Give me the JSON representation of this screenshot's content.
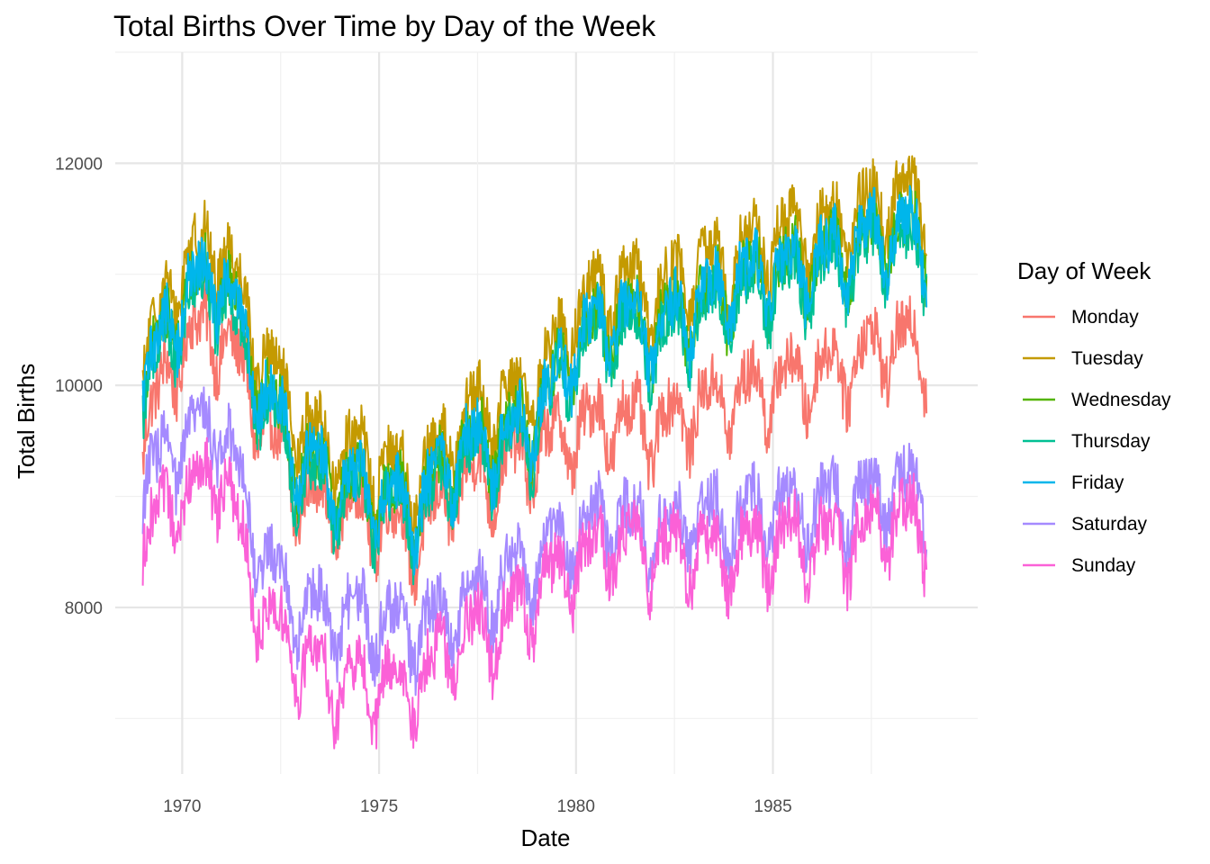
{
  "chart_data": {
    "type": "line",
    "title": "Total Births Over Time by Day of the Week",
    "xlabel": "Date",
    "ylabel": "Total Births",
    "xlim": [
      1968.3,
      1990.2
    ],
    "ylim": [
      6500,
      13000
    ],
    "x_ticks": [
      1970,
      1975,
      1980,
      1985
    ],
    "x_tick_labels": [
      "1970",
      "1975",
      "1980",
      "1985"
    ],
    "y_ticks": [
      8000,
      10000,
      12000
    ],
    "y_tick_labels": [
      "8000",
      "10000",
      "12000"
    ],
    "grid": true,
    "legend_title": "Day of Week",
    "legend_position": "right",
    "series": [
      {
        "name": "Monday",
        "color": "#F8766D",
        "x": [
          1969,
          1970,
          1971,
          1972,
          1973,
          1974,
          1975,
          1976,
          1977,
          1978,
          1979,
          1980,
          1981,
          1982,
          1983,
          1984,
          1985,
          1986,
          1987,
          1988,
          1988.9
        ],
        "y": [
          9500,
          10400,
          10500,
          9700,
          9000,
          8900,
          8800,
          8600,
          9100,
          9200,
          9400,
          9600,
          9700,
          9600,
          9800,
          9900,
          10000,
          10100,
          10200,
          10400,
          10300
        ]
      },
      {
        "name": "Tuesday",
        "color": "#C49A00",
        "x": [
          1969,
          1970,
          1971,
          1972,
          1973,
          1974,
          1975,
          1976,
          1977,
          1978,
          1979,
          1980,
          1981,
          1982,
          1983,
          1984,
          1985,
          1986,
          1987,
          1988,
          1988.9
        ],
        "y": [
          10200,
          11100,
          11300,
          10300,
          9600,
          9400,
          9300,
          9100,
          9700,
          9800,
          10000,
          10700,
          10900,
          10800,
          11000,
          11200,
          11300,
          11400,
          11500,
          11700,
          11600
        ]
      },
      {
        "name": "Wednesday",
        "color": "#53B400",
        "x": [
          1969,
          1970,
          1971,
          1972,
          1973,
          1974,
          1975,
          1976,
          1977,
          1978,
          1979,
          1980,
          1981,
          1982,
          1983,
          1984,
          1985,
          1986,
          1987,
          1988,
          1988.9
        ],
        "y": [
          10000,
          10800,
          11000,
          10000,
          9300,
          9100,
          9000,
          8900,
          9400,
          9500,
          9700,
          10400,
          10600,
          10500,
          10700,
          10900,
          11000,
          11100,
          11200,
          11400,
          11300
        ]
      },
      {
        "name": "Thursday",
        "color": "#00C094",
        "x": [
          1969,
          1970,
          1971,
          1972,
          1973,
          1974,
          1975,
          1976,
          1977,
          1978,
          1979,
          1980,
          1981,
          1982,
          1983,
          1984,
          1985,
          1986,
          1987,
          1988,
          1988.9
        ],
        "y": [
          9900,
          10700,
          10900,
          9900,
          9200,
          9000,
          8900,
          8800,
          9300,
          9400,
          9600,
          10300,
          10500,
          10400,
          10600,
          10800,
          10900,
          11000,
          11100,
          11300,
          11200
        ]
      },
      {
        "name": "Friday",
        "color": "#00B6EB",
        "x": [
          1969,
          1970,
          1971,
          1972,
          1973,
          1974,
          1975,
          1976,
          1977,
          1978,
          1979,
          1980,
          1981,
          1982,
          1983,
          1984,
          1985,
          1986,
          1987,
          1988,
          1988.9
        ],
        "y": [
          10000,
          10800,
          11000,
          10000,
          9300,
          9100,
          9000,
          8900,
          9400,
          9500,
          9700,
          10400,
          10600,
          10500,
          10700,
          10900,
          11000,
          11100,
          11200,
          11400,
          11300
        ]
      },
      {
        "name": "Saturday",
        "color": "#A58AFF",
        "x": [
          1969,
          1970,
          1971,
          1972,
          1973,
          1974,
          1975,
          1976,
          1977,
          1978,
          1979,
          1980,
          1981,
          1982,
          1983,
          1984,
          1985,
          1986,
          1987,
          1988,
          1988.9
        ],
        "y": [
          9100,
          9500,
          9700,
          8500,
          8000,
          7900,
          7900,
          7800,
          8000,
          8200,
          8400,
          8700,
          8800,
          8700,
          8800,
          8800,
          8900,
          8900,
          8900,
          9100,
          9000
        ]
      },
      {
        "name": "Sunday",
        "color": "#FB61D7",
        "x": [
          1969,
          1970,
          1971,
          1972,
          1973,
          1974,
          1975,
          1976,
          1977,
          1978,
          1979,
          1980,
          1981,
          1982,
          1983,
          1984,
          1985,
          1986,
          1987,
          1988,
          1988.9
        ],
        "y": [
          8600,
          9000,
          9200,
          8000,
          7500,
          7300,
          7300,
          7300,
          7700,
          7800,
          8100,
          8400,
          8600,
          8500,
          8500,
          8500,
          8600,
          8600,
          8600,
          8800,
          8700
        ]
      }
    ]
  }
}
